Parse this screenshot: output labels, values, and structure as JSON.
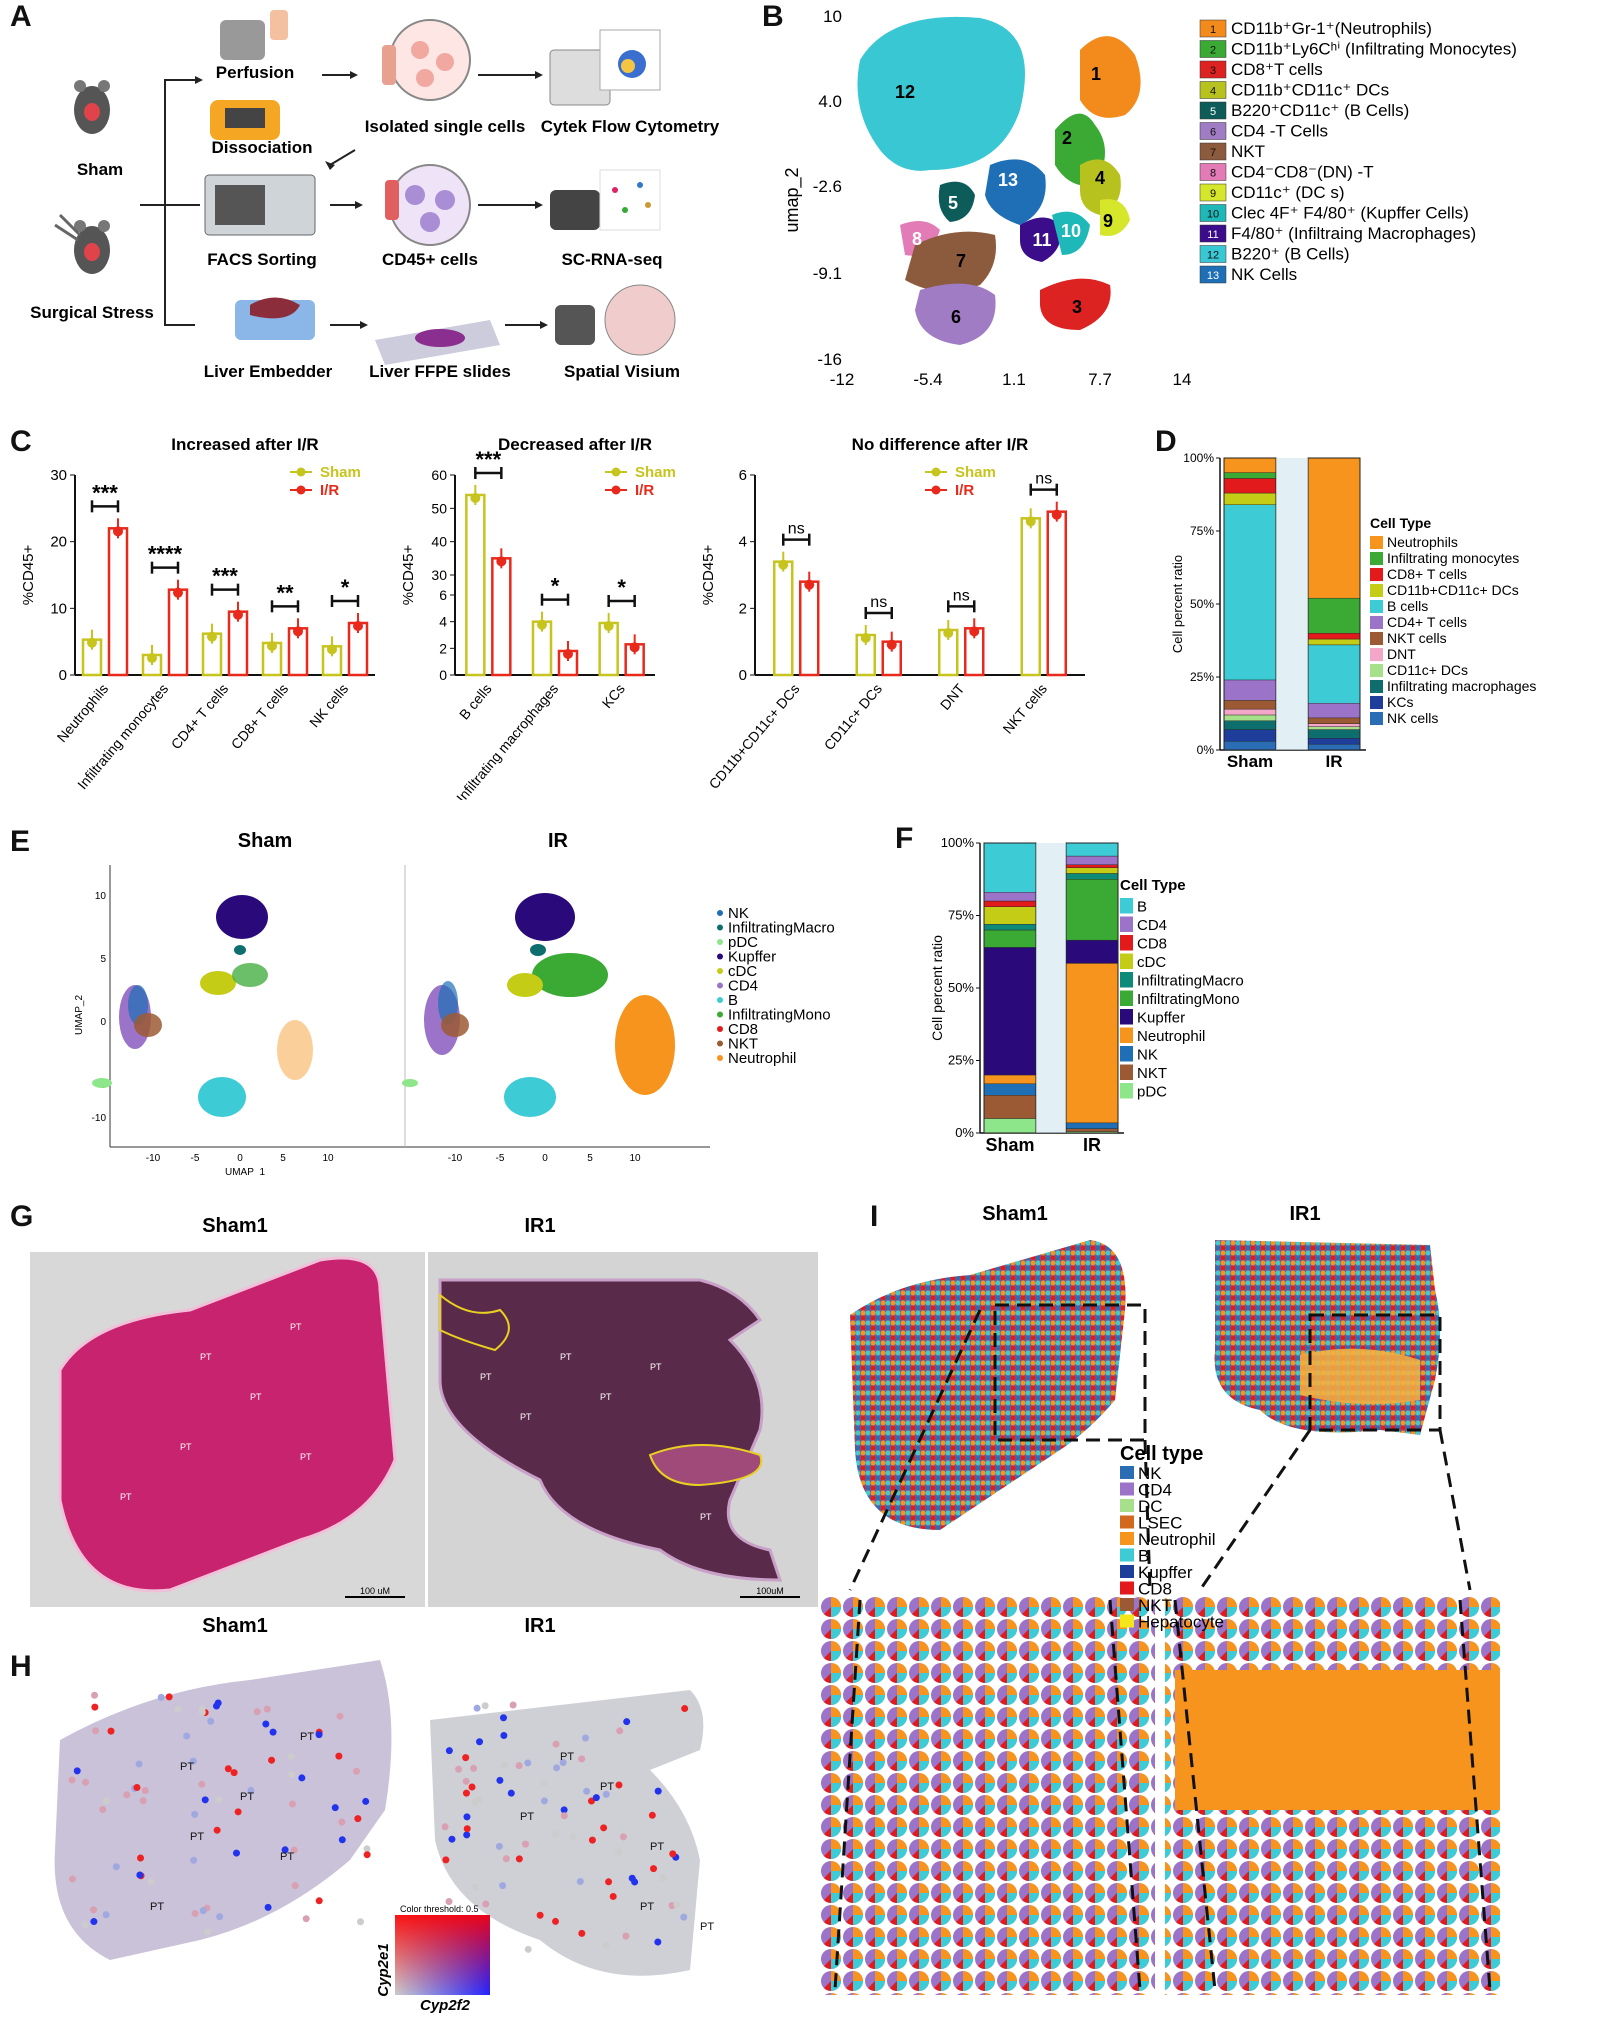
{
  "panels": {
    "A": {
      "letter": "A",
      "labels": {
        "sham": "Sham",
        "surgical_stress": "Surgical Stress",
        "perfusion": "Perfusion",
        "dissociation": "Dissociation",
        "isolated_cells": "Isolated single cells",
        "flow": "Cytek Flow Cytometry",
        "facs": "FACS Sorting",
        "cd45": "CD45+ cells",
        "scrna": "SC-RNA-seq",
        "embedder": "Liver Embedder",
        "ffpe": "Liver FFPE slides",
        "visium": "Spatial Visium"
      }
    },
    "B": {
      "letter": "B",
      "ylabel": "umap_2",
      "yticks": [
        "10",
        "4.0",
        "-2.6",
        "-9.1",
        "-16"
      ],
      "xticks": [
        "-12",
        "-5.4",
        "1.1",
        "7.7",
        "14"
      ],
      "legend": [
        {
          "num": "1",
          "label": "CD11b⁺Gr-1⁺(Neutrophils)",
          "color": "#f28b1c"
        },
        {
          "num": "2",
          "label": "CD11b⁺Ly6Cʰⁱ (Infiltrating Monocytes)",
          "color": "#3aaa35"
        },
        {
          "num": "3",
          "label": "CD8⁺T cells",
          "color": "#dd2222"
        },
        {
          "num": "4",
          "label": "CD11b⁺CD11c⁺ DCs",
          "color": "#b8c21e"
        },
        {
          "num": "5",
          "label": "B220⁺CD11c⁺ (B Cells)",
          "color": "#0e5c59"
        },
        {
          "num": "6",
          "label": "CD4 -T Cells",
          "color": "#a07cc5"
        },
        {
          "num": "7",
          "label": "NKT",
          "color": "#8c5a3c"
        },
        {
          "num": "8",
          "label": "CD4⁻CD8⁻(DN) -T",
          "color": "#e27bb6"
        },
        {
          "num": "9",
          "label": "CD11c⁺ (DC s)",
          "color": "#d6e62b"
        },
        {
          "num": "10",
          "label": "Clec 4F⁺ F4/80⁺ (Kupffer Cells)",
          "color": "#1fb8b8"
        },
        {
          "num": "11",
          "label": "F4/80⁺ (Infiltraing Macrophages)",
          "color": "#3b0d8a"
        },
        {
          "num": "12",
          "label": "B220⁺ (B Cells)",
          "color": "#39c7d4"
        },
        {
          "num": "13",
          "label": "NK Cells",
          "color": "#1e6fb5"
        }
      ]
    },
    "C": {
      "letter": "C"
    },
    "D": {
      "letter": "D",
      "ylabel": "Cell percent ratio",
      "legend_title": "Cell Type",
      "legend": [
        {
          "label": "Neutrophils",
          "color": "#f7941d"
        },
        {
          "label": "Infiltrating monocytes",
          "color": "#3aaa35"
        },
        {
          "label": "CD8+ T cells",
          "color": "#e31a1c"
        },
        {
          "label": "CD11b+CD11c+ DCs",
          "color": "#c4cc16"
        },
        {
          "label": "B cells",
          "color": "#3dcbd6"
        },
        {
          "label": "CD4+ T cells",
          "color": "#9b73c9"
        },
        {
          "label": "NKT cells",
          "color": "#9c5a34"
        },
        {
          "label": "DNT",
          "color": "#f4a6c8"
        },
        {
          "label": "CD11c+ DCs",
          "color": "#a6e08a"
        },
        {
          "label": "Infiltrating macrophages",
          "color": "#0e6e6e"
        },
        {
          "label": "KCs",
          "color": "#1f3e9c"
        },
        {
          "label": "NK cells",
          "color": "#2a6db5"
        }
      ]
    },
    "E": {
      "letter": "E",
      "left_title": "Sham",
      "right_title": "IR",
      "xlabel": "UMAP_1",
      "ylabel": "UMAP_2",
      "yticks": [
        "10",
        "5",
        "0",
        "-5",
        "-10"
      ],
      "xticks": [
        "-10",
        "-5",
        "0",
        "5",
        "10"
      ],
      "legend": [
        {
          "label": "NK",
          "color": "#1e6fb5"
        },
        {
          "label": "InfiltratingMacro",
          "color": "#0e6e6e"
        },
        {
          "label": "pDC",
          "color": "#8ee68a"
        },
        {
          "label": "Kupffer",
          "color": "#2a0a7a"
        },
        {
          "label": "cDC",
          "color": "#c4cc16"
        },
        {
          "label": "CD4",
          "color": "#9b73c9"
        },
        {
          "label": "B",
          "color": "#3dcbd6"
        },
        {
          "label": "InfiltratingMono",
          "color": "#3aaa35"
        },
        {
          "label": "CD8",
          "color": "#e31a1c"
        },
        {
          "label": "NKT",
          "color": "#9c5a34"
        },
        {
          "label": "Neutrophil",
          "color": "#f7941d"
        }
      ]
    },
    "F": {
      "letter": "F",
      "ylabel": "Cell percent ratio",
      "legend_title": "Cell Type",
      "legend": [
        {
          "label": "B",
          "color": "#3dcbd6"
        },
        {
          "label": "CD4",
          "color": "#9b73c9"
        },
        {
          "label": "CD8",
          "color": "#e31a1c"
        },
        {
          "label": "cDC",
          "color": "#c4cc16"
        },
        {
          "label": "InfiltratingMacro",
          "color": "#0e8a78"
        },
        {
          "label": "InfiltratingMono",
          "color": "#3aaa35"
        },
        {
          "label": "Kupffer",
          "color": "#2a0a7a"
        },
        {
          "label": "Neutrophil",
          "color": "#f7941d"
        },
        {
          "label": "NK",
          "color": "#1e6fb5"
        },
        {
          "label": "NKT",
          "color": "#9c5a34"
        },
        {
          "label": "pDC",
          "color": "#8ee68a"
        }
      ]
    },
    "G": {
      "letter": "G",
      "left_title": "Sham1",
      "right_title": "IR1",
      "tissue_label": "PT",
      "scale_left": "100 uM",
      "scale_right": "100uM"
    },
    "H": {
      "letter": "H",
      "left_title": "Sham1",
      "right_title": "IR1",
      "tissue_label": "PT",
      "threshold_label": "Color threshold: 0.5",
      "gene_y": "Cyp2e1",
      "gene_x": "Cyp2f2"
    },
    "I": {
      "letter": "I",
      "left_title": "Sham1",
      "right_title": "IR1",
      "legend_title": "Cell type",
      "legend": [
        {
          "label": "NK",
          "color": "#2a6db5"
        },
        {
          "label": "CD4",
          "color": "#9b73c9"
        },
        {
          "label": "DC",
          "color": "#a6e08a"
        },
        {
          "label": "LSEC",
          "color": "#d2691e"
        },
        {
          "label": "Neutrophil",
          "color": "#f7941d"
        },
        {
          "label": "B",
          "color": "#3dcbd6"
        },
        {
          "label": "Kupffer",
          "color": "#1f3e9c"
        },
        {
          "label": "CD8",
          "color": "#e31a1c"
        },
        {
          "label": "NKT",
          "color": "#9c5a34"
        },
        {
          "label": "Hepatocyte",
          "color": "#f5e61a"
        }
      ]
    }
  },
  "chart_data": [
    {
      "type": "bar",
      "panel": "C-1",
      "title": "Increased after I/R",
      "ylabel": "%CD45+",
      "ylim": [
        0,
        30
      ],
      "yticks": [
        "0",
        "10",
        "20",
        "30"
      ],
      "categories": [
        "Neutrophils",
        "Infiltrating monocytes",
        "CD4+ T cells",
        "CD8+ T cells",
        "NK cells"
      ],
      "series": [
        {
          "name": "Sham",
          "color": "#c8c41e",
          "values": [
            5.3,
            3.0,
            6.2,
            4.8,
            4.3
          ]
        },
        {
          "name": "I/R",
          "color": "#e8291b",
          "values": [
            22,
            12.8,
            9.5,
            7.0,
            7.8
          ]
        }
      ],
      "significance": [
        "***",
        "****",
        "***",
        "**",
        "*"
      ]
    },
    {
      "type": "bar",
      "panel": "C-2",
      "title": "Decreased after I/R",
      "ylabel": "%CD45+",
      "ylim": [
        0,
        60
      ],
      "yticks": [
        "0",
        "2",
        "4",
        "6",
        "30",
        "40",
        "50",
        "60"
      ],
      "categories": [
        "B cells",
        "Infiltrating macrophages",
        "KCs"
      ],
      "series": [
        {
          "name": "Sham",
          "color": "#c8c41e",
          "values": [
            54,
            4.0,
            3.9
          ]
        },
        {
          "name": "I/R",
          "color": "#e8291b",
          "values": [
            35,
            1.8,
            2.3
          ]
        }
      ],
      "significance": [
        "***",
        "*",
        "*"
      ]
    },
    {
      "type": "bar",
      "panel": "C-3",
      "title": "No difference after I/R",
      "ylabel": "%CD45+",
      "ylim": [
        0,
        6
      ],
      "yticks": [
        "0",
        "2",
        "4",
        "6"
      ],
      "categories": [
        "CD11b+CD11c+ DCs",
        "CD11c+ DCs",
        "DNT",
        "NKT cells"
      ],
      "series": [
        {
          "name": "Sham",
          "color": "#c8c41e",
          "values": [
            3.4,
            1.2,
            1.35,
            4.7
          ]
        },
        {
          "name": "I/R",
          "color": "#e8291b",
          "values": [
            2.8,
            1.0,
            1.4,
            4.9
          ]
        }
      ],
      "significance": [
        "ns",
        "ns",
        "ns",
        "ns"
      ]
    },
    {
      "type": "bar",
      "panel": "D",
      "stacked": true,
      "categories": [
        "Sham",
        "IR"
      ],
      "yticks": [
        "0%",
        "25%",
        "50%",
        "75%",
        "100%"
      ],
      "series": [
        {
          "name": "NK cells",
          "values": [
            3,
            2
          ]
        },
        {
          "name": "KCs",
          "values": [
            4,
            2
          ]
        },
        {
          "name": "Infiltrating macrophages",
          "values": [
            3,
            3
          ]
        },
        {
          "name": "CD11c+ DCs",
          "values": [
            2,
            1
          ]
        },
        {
          "name": "DNT",
          "values": [
            2,
            1
          ]
        },
        {
          "name": "NKT cells",
          "values": [
            3,
            2
          ]
        },
        {
          "name": "CD4+ T cells",
          "values": [
            7,
            5
          ]
        },
        {
          "name": "B cells",
          "values": [
            60,
            20
          ]
        },
        {
          "name": "CD11b+CD11c+ DCs",
          "values": [
            4,
            2
          ]
        },
        {
          "name": "CD8+ T cells",
          "values": [
            5,
            2
          ]
        },
        {
          "name": "Infiltrating monocytes",
          "values": [
            2,
            12
          ]
        },
        {
          "name": "Neutrophils",
          "values": [
            5,
            48
          ]
        }
      ]
    },
    {
      "type": "bar",
      "panel": "F",
      "stacked": true,
      "categories": [
        "Sham",
        "IR"
      ],
      "yticks": [
        "0%",
        "25%",
        "50%",
        "75%",
        "100%"
      ],
      "series": [
        {
          "name": "pDC",
          "values": [
            5,
            0.5
          ]
        },
        {
          "name": "NKT",
          "values": [
            8,
            1
          ]
        },
        {
          "name": "NK",
          "values": [
            4,
            2
          ]
        },
        {
          "name": "Neutrophil",
          "values": [
            3,
            55
          ]
        },
        {
          "name": "Kupffer",
          "values": [
            44,
            8
          ]
        },
        {
          "name": "InfiltratingMono",
          "values": [
            6,
            21
          ]
        },
        {
          "name": "InfiltratingMacro",
          "values": [
            2,
            2
          ]
        },
        {
          "name": "cDC",
          "values": [
            6,
            2
          ]
        },
        {
          "name": "CD8",
          "values": [
            2,
            1
          ]
        },
        {
          "name": "CD4",
          "values": [
            3,
            3
          ]
        },
        {
          "name": "B",
          "values": [
            17,
            4.5
          ]
        }
      ]
    }
  ]
}
